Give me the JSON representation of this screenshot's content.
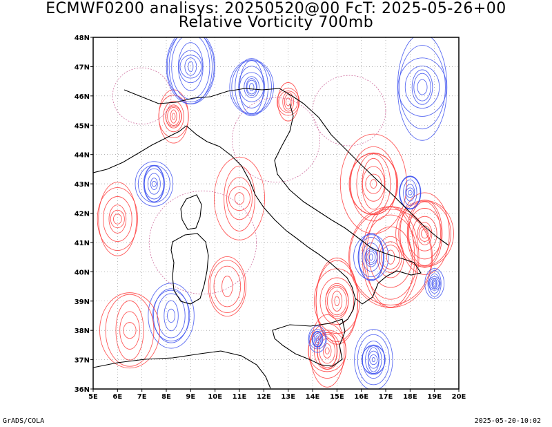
{
  "title_line1": "ECMWF0200 analisys: 20250520@00 FcT: 2025-05-26+00",
  "title_line2": "Relative Vorticity 700mb",
  "footer_left": "GrADS/COLA",
  "footer_right": "2025-05-20-10:02",
  "map": {
    "lon_range": [
      5,
      20
    ],
    "lat_range": [
      36,
      48
    ],
    "lon_ticks": [
      "5E",
      "6E",
      "7E",
      "8E",
      "9E",
      "10E",
      "11E",
      "12E",
      "13E",
      "14E",
      "15E",
      "16E",
      "17E",
      "18E",
      "19E",
      "20E"
    ],
    "lat_ticks": [
      "36N",
      "37N",
      "38N",
      "39N",
      "40N",
      "41N",
      "42N",
      "43N",
      "44N",
      "45N",
      "46N",
      "47N",
      "48N"
    ],
    "grid": true,
    "colors": {
      "positive_vorticity": "#ff3c3c",
      "negative_vorticity": "#3c50f0",
      "zero_line": "#d070a0",
      "coastline": "#000000",
      "grid": "#888888"
    }
  }
}
